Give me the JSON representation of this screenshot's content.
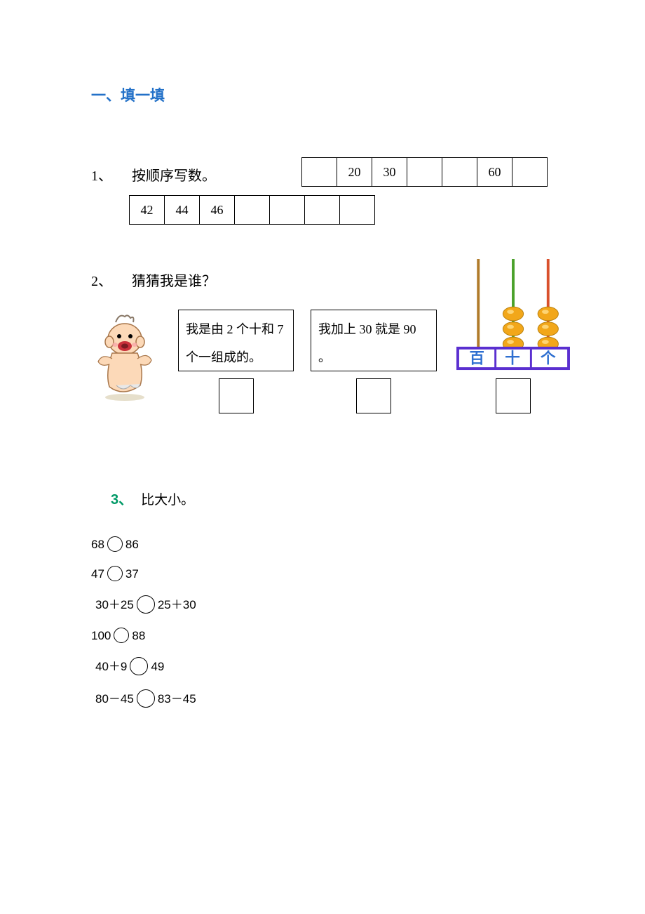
{
  "section_title": "一、填一填",
  "q1": {
    "num": "1、",
    "label": "按顺序写数。",
    "top_cells": [
      "",
      "20",
      "30",
      "",
      "",
      "60",
      ""
    ],
    "bottom_cells": [
      "42",
      "44",
      "46",
      "",
      "",
      "",
      ""
    ]
  },
  "q2": {
    "num": "2、",
    "label": "猜猜我是谁？",
    "riddle1": "我是由 2 个十和 7 个一组成的。",
    "riddle2": "我加上 30 就是 90 。",
    "abacus": {
      "rod_colors": [
        "#b07b2a",
        "#4aa12a",
        "#d9512c"
      ],
      "beads": [
        0,
        3,
        3
      ],
      "bead_color": "#f2a71a",
      "frame_color": "#5a2fd0",
      "labels": [
        "百",
        "十",
        "个"
      ],
      "label_color": "#2e6fd0"
    }
  },
  "q3": {
    "num": "3、",
    "label": "比大小。",
    "rows": [
      {
        "lhs": "68",
        "rhs": "86",
        "big": false,
        "indent": 0
      },
      {
        "lhs": "47",
        "rhs": "37",
        "big": false,
        "indent": 0
      },
      {
        "lhs": "30＋25",
        "rhs": "25＋30",
        "big": true,
        "indent": 6
      },
      {
        "lhs": "100",
        "rhs": "88",
        "big": false,
        "indent": 0
      },
      {
        "lhs": "40＋9",
        "rhs": "49",
        "big": true,
        "indent": 6
      },
      {
        "lhs": "80－45",
        "rhs": "83－45",
        "big": true,
        "indent": 6
      }
    ]
  }
}
